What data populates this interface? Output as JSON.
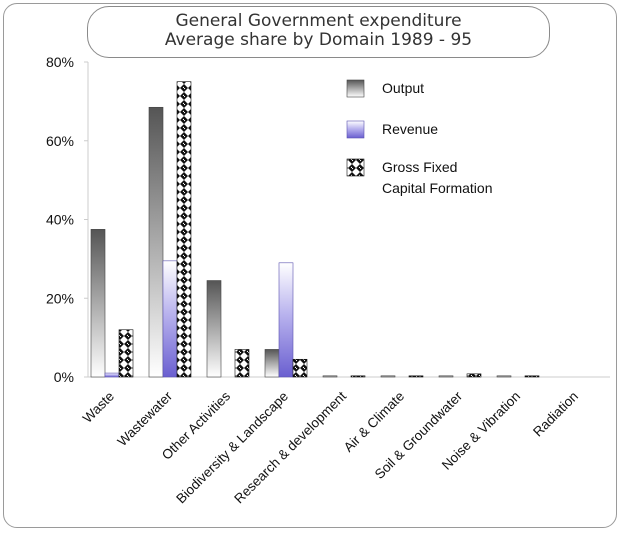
{
  "chart_data": {
    "type": "bar",
    "title": "General Government expenditure",
    "subtitle": "Average share by Domain 1989 - 95",
    "xlabel": "",
    "ylabel": "",
    "ylim": [
      0,
      80
    ],
    "y_ticks": [
      "0%",
      "20%",
      "40%",
      "60%",
      "80%"
    ],
    "y_tick_values": [
      0,
      20,
      40,
      60,
      80
    ],
    "grid": false,
    "legend_position": "top-right",
    "categories": [
      "Waste",
      "Wastewater",
      "Other Activities",
      "Biodiversity & Landscape",
      "Research & development",
      "Air & Climate",
      "Soil & Groundwater",
      "Noise & Vibration",
      "Radiation"
    ],
    "series": [
      {
        "name": "Output",
        "values": [
          37.5,
          68.5,
          24.5,
          7,
          0.3,
          0.3,
          0.3,
          0.3,
          0
        ]
      },
      {
        "name": "Revenue",
        "values": [
          1,
          29.5,
          0,
          29,
          0,
          0,
          0,
          0,
          0
        ]
      },
      {
        "name": "Gross Fixed Capital Formation",
        "values": [
          12,
          75,
          7,
          4.5,
          0.3,
          0.3,
          0.8,
          0.3,
          0
        ]
      }
    ],
    "legend_lines": [
      [
        "Output"
      ],
      [
        "Revenue"
      ],
      [
        "Gross Fixed",
        "Capital Formation"
      ]
    ]
  },
  "colors": {
    "output_dark": "#555555",
    "output_light": "#ffffff",
    "revenue_dark": "#6a5fd0",
    "revenue_light": "#ffffff",
    "gfcf_dark": "#111111",
    "gfcf_light": "#ffffff",
    "axis": "#cccccc",
    "frame": "#9a9a9a"
  }
}
